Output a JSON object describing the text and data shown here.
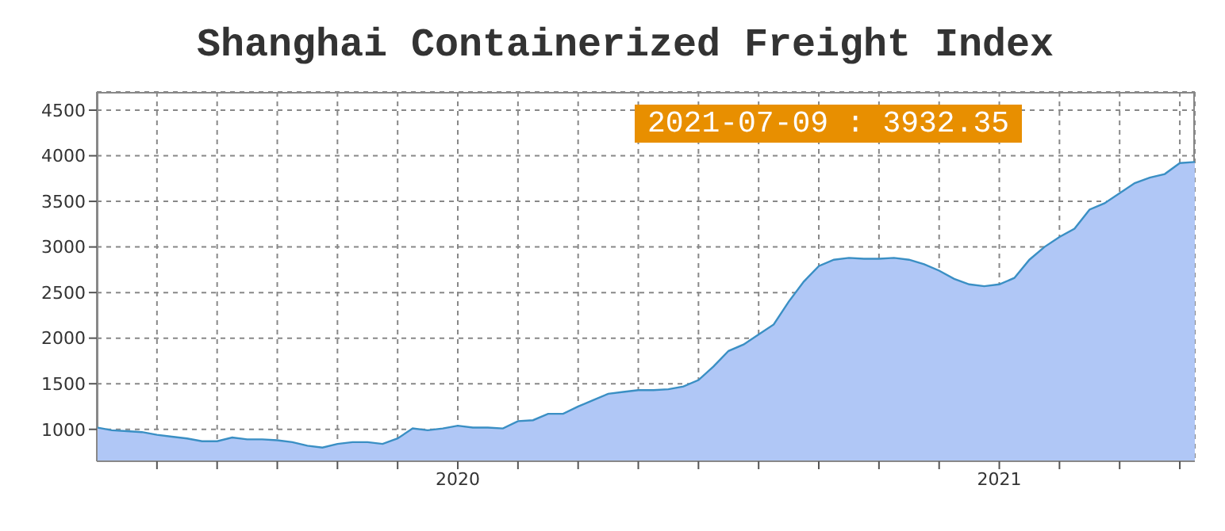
{
  "chart_data": {
    "type": "area",
    "title": "Shanghai Containerized Freight Index",
    "categories": [
      null,
      null,
      null,
      null,
      null,
      null,
      null,
      null,
      null,
      null,
      null,
      null,
      null,
      null,
      null,
      null,
      null,
      null,
      null,
      null,
      null,
      null,
      null,
      null,
      "2020",
      null,
      null,
      null,
      null,
      null,
      null,
      null,
      null,
      null,
      null,
      null,
      null,
      null,
      null,
      null,
      null,
      null,
      null,
      null,
      null,
      null,
      null,
      null,
      null,
      null,
      null,
      null,
      null,
      null,
      null,
      null,
      null,
      null,
      null,
      null,
      "2021",
      null,
      null,
      null,
      null,
      null,
      null,
      null,
      null,
      null,
      null,
      null,
      null,
      null
    ],
    "series": [
      {
        "color": "#3a8fc4",
        "values": [
          1020,
          990,
          980,
          970,
          940,
          920,
          900,
          870,
          870,
          910,
          890,
          890,
          880,
          860,
          820,
          800,
          840,
          860,
          860,
          840,
          900,
          1010,
          990,
          1010,
          1040,
          1020,
          1020,
          1010,
          1090,
          1100,
          1170,
          1170,
          1250,
          1320,
          1390,
          1410,
          1430,
          1430,
          1440,
          1470,
          1540,
          1690,
          1860,
          1930,
          2040,
          2150,
          2400,
          2620,
          2790,
          2860,
          2880,
          2870,
          2870,
          2880,
          2860,
          2810,
          2740,
          2650,
          2590,
          2570,
          2590,
          2660,
          2860,
          3000,
          3110,
          3200,
          3410,
          3480,
          3590,
          3700,
          3760,
          3800,
          3920,
          3932.35
        ]
      }
    ],
    "ylim": [
      650,
      4700
    ],
    "yticks": [
      1000,
      1500,
      2000,
      2500,
      3000,
      3500,
      4000,
      4500
    ],
    "grid": true,
    "annotations": [
      "2021-07-09 : 3932.35"
    ]
  }
}
